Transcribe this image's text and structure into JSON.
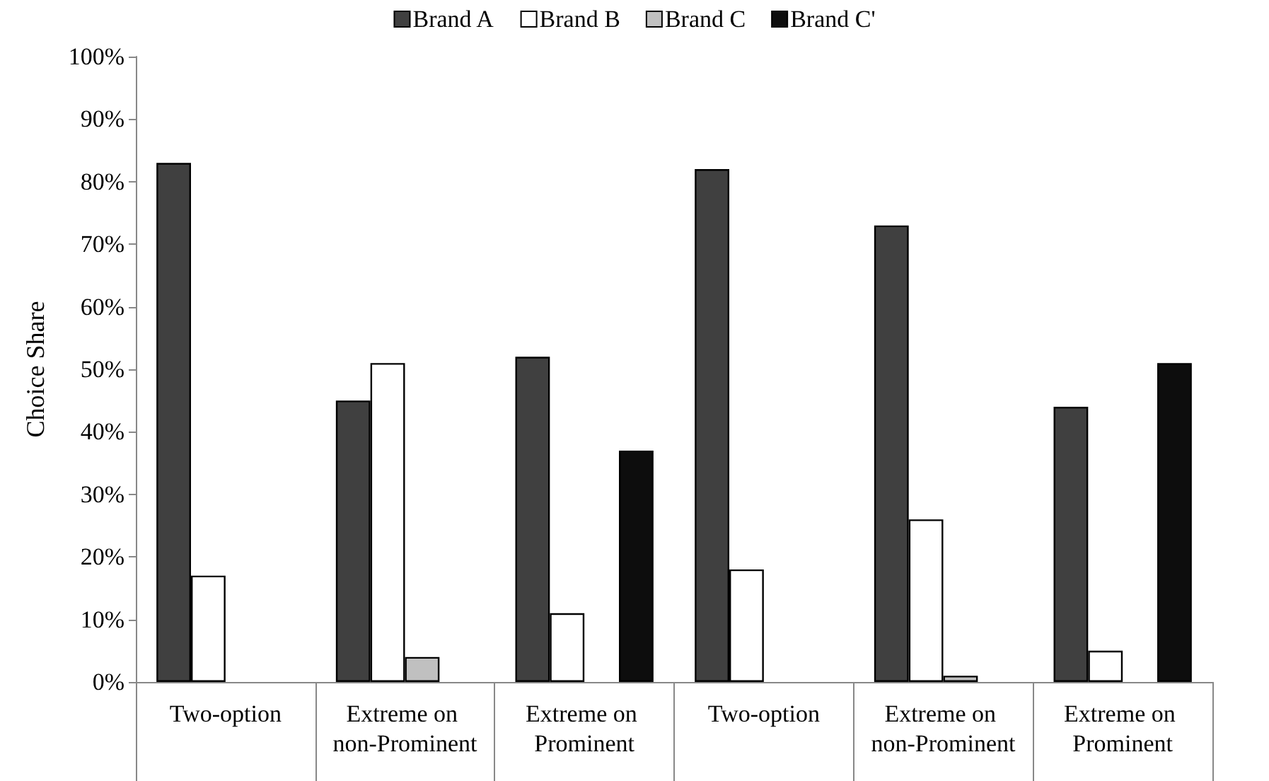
{
  "chart_data": {
    "type": "bar",
    "ylabel": "Choice Share",
    "categories": [
      "Two-option",
      "Extreme on non-Prominent",
      "Extreme on Prominent",
      "Two-option",
      "Extreme on non-Prominent",
      "Extreme on Prominent"
    ],
    "series": [
      {
        "name": "Brand A",
        "color": "#404040",
        "values": [
          0.83,
          0.45,
          0.52,
          0.82,
          0.73,
          0.44
        ]
      },
      {
        "name": "Brand B",
        "color": "#ffffff",
        "values": [
          0.17,
          0.51,
          0.11,
          0.18,
          0.26,
          0.05
        ]
      },
      {
        "name": "Brand C",
        "color": "#c0c0c0",
        "values": [
          null,
          0.04,
          null,
          null,
          0.01,
          null
        ]
      },
      {
        "name": "Brand C'",
        "color": "#0d0d0d",
        "values": [
          null,
          null,
          0.37,
          null,
          null,
          0.51
        ]
      }
    ],
    "ylim": [
      0,
      1
    ],
    "yticks": [
      {
        "value": 0,
        "label": "0%"
      },
      {
        "value": 0.1,
        "label": "10%"
      },
      {
        "value": 0.2,
        "label": "20%"
      },
      {
        "value": 0.3,
        "label": "30%"
      },
      {
        "value": 0.4,
        "label": "40%"
      },
      {
        "value": 0.5,
        "label": "50%"
      },
      {
        "value": 0.6,
        "label": "60%"
      },
      {
        "value": 0.7,
        "label": "70%"
      },
      {
        "value": 0.8,
        "label": "80%"
      },
      {
        "value": 0.9,
        "label": "90%"
      },
      {
        "value": 1,
        "label": "100%"
      }
    ],
    "grid": false,
    "legend": "top"
  }
}
